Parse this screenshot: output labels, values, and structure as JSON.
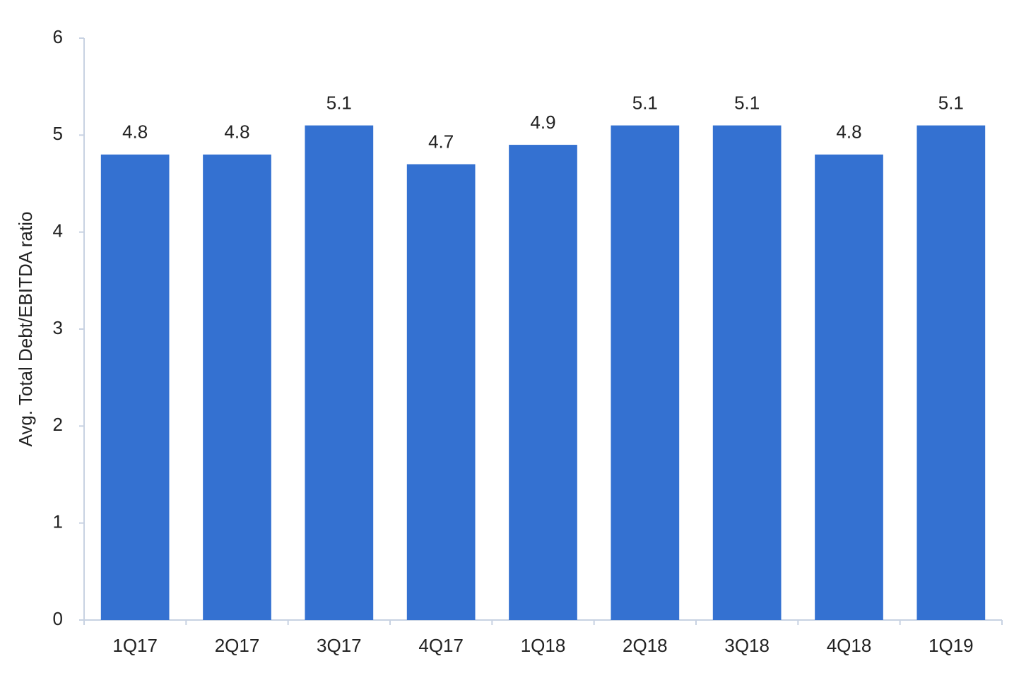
{
  "chart_data": {
    "type": "bar",
    "y_label": "Avg. Total Debt/EBITDA ratio",
    "categories": [
      "1Q17",
      "2Q17",
      "3Q17",
      "4Q17",
      "1Q18",
      "2Q18",
      "3Q18",
      "4Q18",
      "1Q19"
    ],
    "values": [
      4.8,
      4.8,
      5.1,
      4.7,
      4.9,
      5.1,
      5.1,
      4.8,
      5.1
    ],
    "color": "#3471d1",
    "ylim": [
      0,
      6
    ],
    "yticks": [
      0,
      1,
      2,
      3,
      4,
      5,
      6
    ],
    "grid": false
  }
}
